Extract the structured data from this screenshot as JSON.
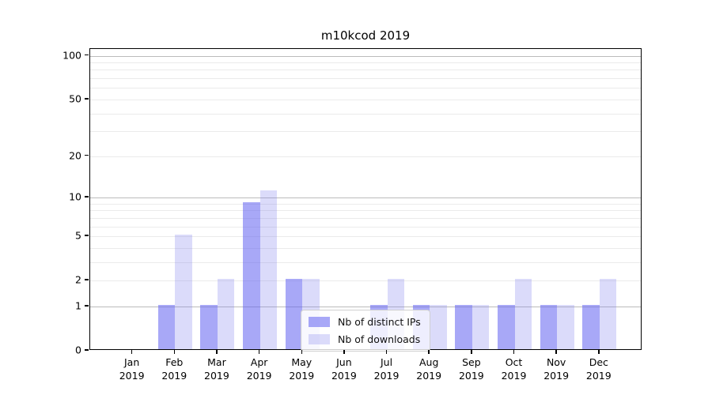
{
  "chart_data": {
    "type": "bar",
    "title": "m10kcod 2019",
    "categories": [
      "Jan 2019",
      "Feb 2019",
      "Mar 2019",
      "Apr 2019",
      "May 2019",
      "Jun 2019",
      "Jul 2019",
      "Aug 2019",
      "Sep 2019",
      "Oct 2019",
      "Nov 2019",
      "Dec 2019"
    ],
    "series": [
      {
        "name": "Nb of distinct IPs",
        "values": [
          0,
          1,
          1,
          9,
          2,
          0,
          1,
          1,
          1,
          1,
          1,
          1
        ]
      },
      {
        "name": "Nb of downloads",
        "values": [
          0,
          5,
          2,
          11,
          2,
          0,
          2,
          1,
          1,
          2,
          1,
          2
        ]
      }
    ],
    "xlabel": "",
    "ylabel": "",
    "yscale": "log1p",
    "ylim": [
      0,
      111
    ],
    "yticks": [
      0,
      1,
      2,
      5,
      10,
      20,
      50,
      100
    ],
    "grid_major_values": [
      1,
      10,
      100
    ],
    "grid_minor_values": [
      2,
      3,
      4,
      5,
      6,
      7,
      8,
      9,
      20,
      30,
      40,
      50,
      60,
      70,
      80,
      90
    ],
    "grid": "on",
    "legend_position": "lower-center",
    "colors": {
      "distinct_ips": "rgba(97,97,240,0.55)",
      "downloads": "rgba(125,125,238,0.28)",
      "grid_major": "#bbbbbb",
      "grid_minor": "#ebebeb",
      "axis": "#000000"
    }
  }
}
